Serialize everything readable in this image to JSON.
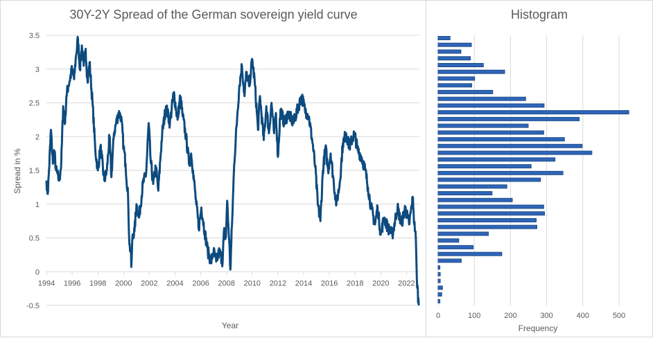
{
  "chart_data": [
    {
      "type": "line",
      "title": "30Y-2Y Spread of the German sovereign yield curve",
      "xlabel": "Year",
      "ylabel": "Spread in %",
      "xlim": [
        1994,
        2023
      ],
      "ylim": [
        -0.5,
        3.5
      ],
      "x_ticks": [
        "1994",
        "1996",
        "1998",
        "2000",
        "2002",
        "2004",
        "2006",
        "2008",
        "2010",
        "2012",
        "2014",
        "2016",
        "2018",
        "2020",
        "2022"
      ],
      "x_tick_values": [
        1994,
        1996,
        1998,
        2000,
        2002,
        2004,
        2006,
        2008,
        2010,
        2012,
        2014,
        2016,
        2018,
        2020,
        2022
      ],
      "y_ticks": [
        "-0.5",
        "0",
        "0.5",
        "1",
        "1.5",
        "2",
        "2.5",
        "3",
        "3.5"
      ],
      "y_tick_values": [
        -0.5,
        0,
        0.5,
        1,
        1.5,
        2,
        2.5,
        3,
        3.5
      ],
      "grid": "horizontal",
      "legend": "none",
      "series": [
        {
          "name": "30Y-2Y Spread",
          "color": "#0d4a7e",
          "x": [
            1994.0,
            1994.1,
            1994.2,
            1994.35,
            1994.5,
            1994.6,
            1994.75,
            1995.0,
            1995.15,
            1995.3,
            1995.45,
            1995.55,
            1995.7,
            1996.0,
            1996.15,
            1996.3,
            1996.45,
            1996.6,
            1996.75,
            1996.9,
            1997.05,
            1997.2,
            1997.35,
            1997.6,
            1997.8,
            1998.0,
            1998.2,
            1998.5,
            1998.7,
            1998.9,
            1999.05,
            1999.25,
            1999.6,
            1999.8,
            2000.0,
            2000.15,
            2000.35,
            2000.45,
            2000.55,
            2000.6,
            2000.7,
            2000.85,
            2001.0,
            2001.2,
            2001.5,
            2001.75,
            2001.95,
            2002.1,
            2002.3,
            2002.5,
            2002.7,
            2002.85,
            2003.0,
            2003.3,
            2003.6,
            2003.9,
            2004.2,
            2004.4,
            2004.6,
            2004.85,
            2005.1,
            2005.25,
            2005.4,
            2005.65,
            2005.85,
            2006.05,
            2006.3,
            2006.55,
            2006.8,
            2007.0,
            2007.2,
            2007.45,
            2007.7,
            2007.8,
            2007.95,
            2008.05,
            2008.2,
            2008.3,
            2008.45,
            2008.6,
            2008.85,
            2009.0,
            2009.2,
            2009.4,
            2009.55,
            2009.75,
            2009.9,
            2010.0,
            2010.2,
            2010.45,
            2010.6,
            2010.9,
            2011.1,
            2011.3,
            2011.5,
            2011.7,
            2011.85,
            2012.0,
            2012.2,
            2012.5,
            2012.8,
            2013.2,
            2013.6,
            2013.85,
            2014.1,
            2014.4,
            2014.7,
            2014.9,
            2015.1,
            2015.3,
            2015.5,
            2015.7,
            2015.9,
            2016.1,
            2016.35,
            2016.55,
            2016.8,
            2017.05,
            2017.3,
            2017.55,
            2017.95,
            2018.2,
            2018.5,
            2018.8,
            2019.0,
            2019.25,
            2019.55,
            2019.75,
            2020.0,
            2020.25,
            2020.55,
            2020.9,
            2021.3,
            2021.6,
            2021.9,
            2022.2,
            2022.5,
            2022.6,
            2022.7,
            2022.8,
            2022.95
          ],
          "y": [
            1.35,
            1.15,
            1.5,
            2.1,
            1.6,
            1.8,
            1.5,
            1.35,
            1.6,
            2.45,
            2.2,
            2.6,
            2.75,
            3.0,
            2.85,
            3.2,
            3.45,
            3.0,
            3.35,
            3.05,
            3.3,
            2.8,
            3.1,
            2.45,
            1.8,
            1.5,
            1.85,
            1.35,
            1.5,
            2.0,
            1.4,
            2.05,
            2.35,
            2.3,
            1.85,
            1.6,
            1.1,
            0.4,
            0.3,
            0.07,
            0.55,
            0.6,
            1.0,
            0.8,
            1.3,
            1.45,
            2.2,
            1.65,
            1.3,
            1.55,
            1.2,
            1.65,
            2.05,
            2.45,
            2.2,
            2.65,
            2.25,
            2.6,
            2.3,
            2.0,
            1.6,
            1.75,
            1.5,
            1.0,
            0.65,
            0.95,
            0.6,
            0.3,
            0.15,
            0.3,
            0.15,
            0.3,
            0.15,
            0.6,
            0.5,
            1.05,
            0.5,
            0.03,
            0.8,
            1.6,
            2.35,
            2.75,
            3.05,
            2.6,
            2.95,
            2.75,
            2.95,
            3.15,
            2.8,
            2.1,
            2.6,
            1.95,
            2.45,
            2.05,
            2.5,
            2.05,
            2.35,
            1.7,
            2.4,
            2.2,
            2.35,
            2.2,
            2.45,
            2.6,
            2.4,
            2.3,
            1.9,
            1.55,
            1.0,
            0.75,
            1.5,
            1.85,
            1.5,
            1.75,
            1.3,
            1.0,
            1.3,
            1.9,
            2.05,
            1.85,
            2.05,
            1.8,
            1.7,
            1.5,
            1.25,
            0.95,
            0.7,
            0.95,
            0.55,
            0.8,
            0.65,
            0.55,
            0.95,
            0.7,
            0.95,
            0.7,
            1.1,
            0.7,
            0.6,
            -0.1,
            -0.5
          ]
        }
      ]
    },
    {
      "type": "bar",
      "orientation": "horizontal",
      "title": "Histogram",
      "xlabel": "Frequency",
      "ylabel": "",
      "xlim": [
        0,
        550
      ],
      "x_ticks": [
        "0",
        "100",
        "200",
        "300",
        "400",
        "500"
      ],
      "x_tick_values": [
        0,
        100,
        200,
        300,
        400,
        500
      ],
      "grid": "vertical",
      "legend": "none",
      "bar_color": "#2e65b8",
      "bar_order": "top-to-bottom",
      "values": [
        33,
        92,
        63,
        89,
        125,
        184,
        101,
        93,
        151,
        242,
        293,
        527,
        390,
        249,
        292,
        349,
        398,
        425,
        323,
        257,
        345,
        283,
        190,
        149,
        205,
        292,
        294,
        271,
        273,
        139,
        57,
        97,
        176,
        64,
        5,
        6,
        6,
        12,
        10,
        5
      ]
    }
  ]
}
